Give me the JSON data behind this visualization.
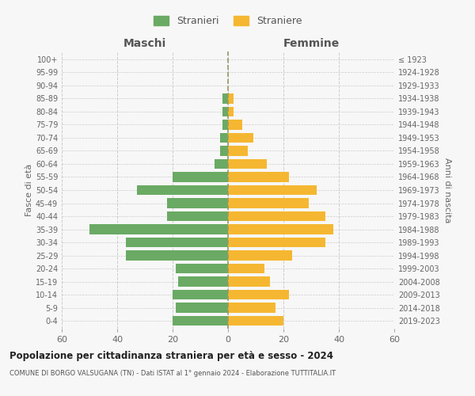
{
  "age_groups": [
    "0-4",
    "5-9",
    "10-14",
    "15-19",
    "20-24",
    "25-29",
    "30-34",
    "35-39",
    "40-44",
    "45-49",
    "50-54",
    "55-59",
    "60-64",
    "65-69",
    "70-74",
    "75-79",
    "80-84",
    "85-89",
    "90-94",
    "95-99",
    "100+"
  ],
  "birth_years": [
    "2019-2023",
    "2014-2018",
    "2009-2013",
    "2004-2008",
    "1999-2003",
    "1994-1998",
    "1989-1993",
    "1984-1988",
    "1979-1983",
    "1974-1978",
    "1969-1973",
    "1964-1968",
    "1959-1963",
    "1954-1958",
    "1949-1953",
    "1944-1948",
    "1939-1943",
    "1934-1938",
    "1929-1933",
    "1924-1928",
    "≤ 1923"
  ],
  "males": [
    20,
    19,
    20,
    18,
    19,
    37,
    37,
    50,
    22,
    22,
    33,
    20,
    5,
    3,
    3,
    2,
    2,
    2,
    0,
    0,
    0
  ],
  "females": [
    20,
    17,
    22,
    15,
    13,
    23,
    35,
    38,
    35,
    29,
    32,
    22,
    14,
    7,
    9,
    5,
    2,
    2,
    0,
    0,
    0
  ],
  "male_color": "#6aaa64",
  "female_color": "#f5b731",
  "background_color": "#f7f7f7",
  "grid_color": "#cccccc",
  "title": "Popolazione per cittadinanza straniera per età e sesso - 2024",
  "subtitle": "COMUNE DI BORGO VALSUGANA (TN) - Dati ISTAT al 1° gennaio 2024 - Elaborazione TUTTITALIA.IT",
  "xlim": 60,
  "xlabel_left": "Maschi",
  "xlabel_right": "Femmine",
  "ylabel_left": "Fasce di età",
  "ylabel_right": "Anni di nascita",
  "legend_males": "Stranieri",
  "legend_females": "Straniere"
}
